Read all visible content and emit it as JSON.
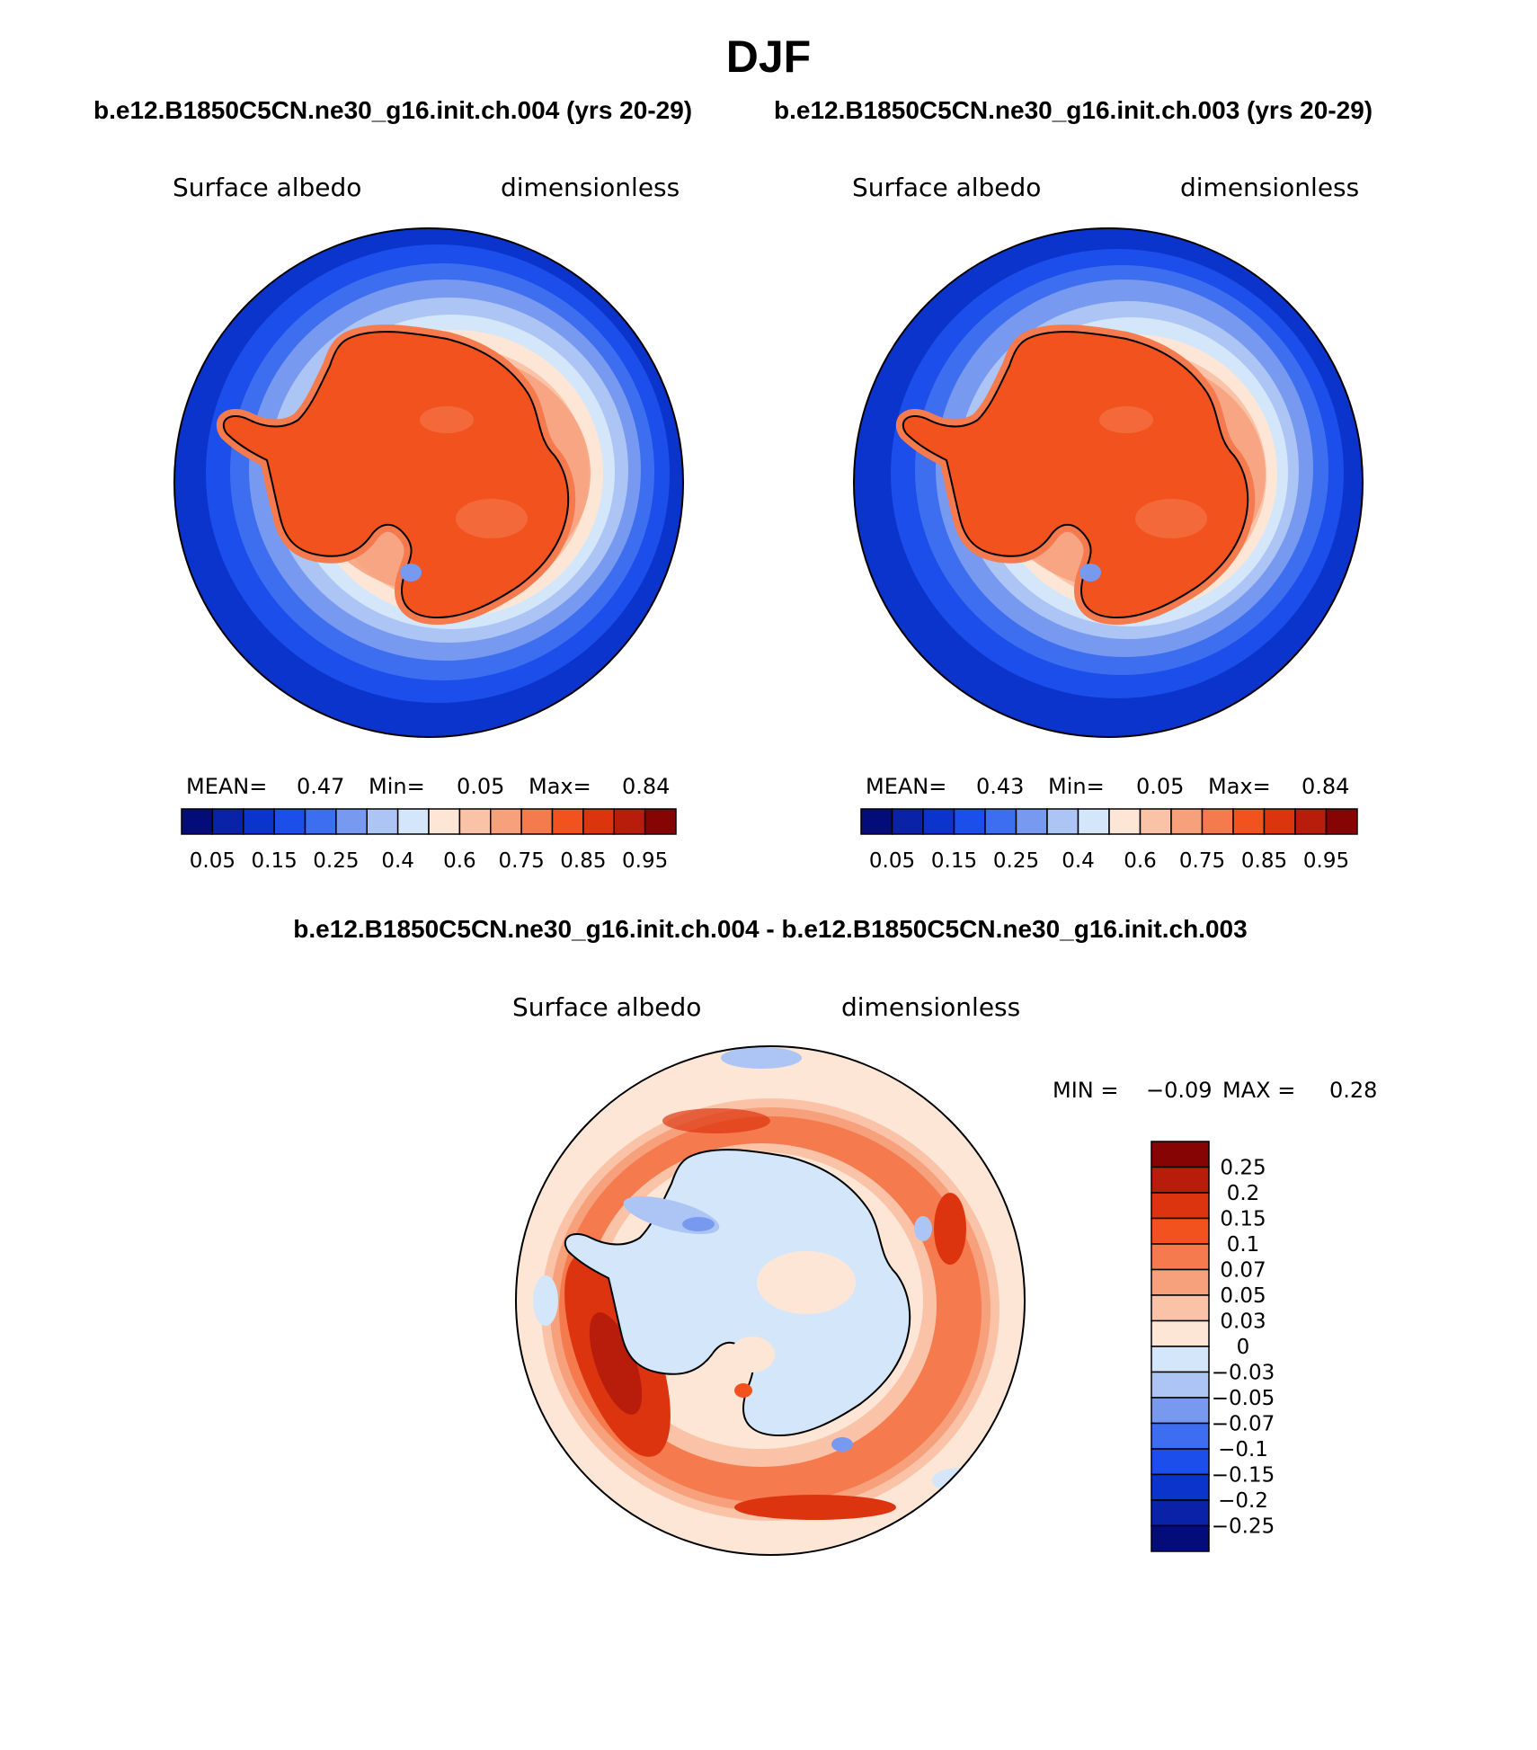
{
  "title": "DJF",
  "subtitle_left": "b.e12.B1850C5CN.ne30_g16.init.ch.004 (yrs 20-29)",
  "subtitle_right": "b.e12.B1850C5CN.ne30_g16.init.ch.003 (yrs 20-29)",
  "diff_title": "b.e12.B1850C5CN.ne30_g16.init.ch.004 - b.e12.B1850C5CN.ne30_g16.init.ch.003",
  "panel1": {
    "var_label": "Surface albedo",
    "units": "dimensionless",
    "mean_label": "MEAN=",
    "mean": "0.47",
    "min_label": "Min=",
    "min": "0.05",
    "max_label": "Max=",
    "max": "0.84"
  },
  "panel2": {
    "var_label": "Surface albedo",
    "units": "dimensionless",
    "mean_label": "MEAN=",
    "mean": "0.43",
    "min_label": "Min=",
    "min": "0.05",
    "max_label": "Max=",
    "max": "0.84"
  },
  "panel3": {
    "var_label": "Surface albedo",
    "units": "dimensionless",
    "min_label": "MIN =",
    "min": "−0.09",
    "max_label": "MAX =",
    "max": "0.28"
  },
  "colorbar_top": {
    "labels": [
      "0.05",
      "0.15",
      "0.25",
      "0.4",
      "0.6",
      "0.75",
      "0.85",
      "0.95"
    ],
    "colors": [
      "#040c7a",
      "#0a22a8",
      "#0b34cc",
      "#1b4eea",
      "#3e6ef0",
      "#7899f0",
      "#adc5f5",
      "#d4e6fa",
      "#fde6d6",
      "#fac3a8",
      "#f7a07c",
      "#f57a4e",
      "#f2521d",
      "#dd3410",
      "#b81c0b",
      "#860404"
    ]
  },
  "colorbar_diff": {
    "labels": [
      "0.25",
      "0.2",
      "0.15",
      "0.1",
      "0.07",
      "0.05",
      "0.03",
      "0",
      "−0.03",
      "−0.05",
      "−0.07",
      "−0.1",
      "−0.15",
      "−0.2",
      "−0.25"
    ],
    "colors": [
      "#860404",
      "#b81c0b",
      "#dd3410",
      "#f2521d",
      "#f57a4e",
      "#f7a07c",
      "#fac3a8",
      "#fde6d6",
      "#d4e6fa",
      "#adc5f5",
      "#7899f0",
      "#3e6ef0",
      "#1b4eea",
      "#0b34cc",
      "#0a22a8",
      "#040c7a"
    ]
  }
}
